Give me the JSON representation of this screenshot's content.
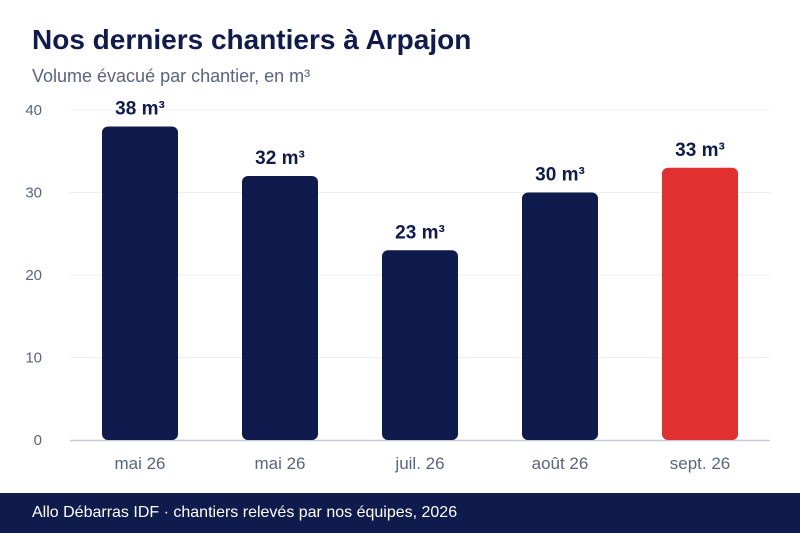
{
  "header": {
    "title": "Nos derniers chantiers à Arpajon",
    "subtitle": "Volume évacué par chantier, en m³"
  },
  "footer": {
    "source": "Allo Débarras IDF · chantiers relevés par nos équipes, 2026"
  },
  "colors": {
    "bar": "#0f1b4c",
    "highlight": "#e03030",
    "grid": "#ececf2",
    "axis_text": "#5a6480"
  },
  "chart_data": {
    "type": "bar",
    "categories": [
      "mai 26",
      "mai 26",
      "juil. 26",
      "août 26",
      "sept. 26"
    ],
    "values": [
      38,
      32,
      23,
      30,
      33
    ],
    "data_labels": [
      "38 m³",
      "32 m³",
      "23 m³",
      "30 m³",
      "33 m³"
    ],
    "highlight_index": 4,
    "ylim": [
      0,
      40
    ],
    "yticks": [
      0,
      10,
      20,
      30,
      40
    ],
    "ytick_labels": [
      "0",
      "10",
      "20",
      "30",
      "40"
    ],
    "grid": true,
    "title": "Nos derniers chantiers à Arpajon",
    "subtitle": "Volume évacué par chantier, en m³"
  }
}
